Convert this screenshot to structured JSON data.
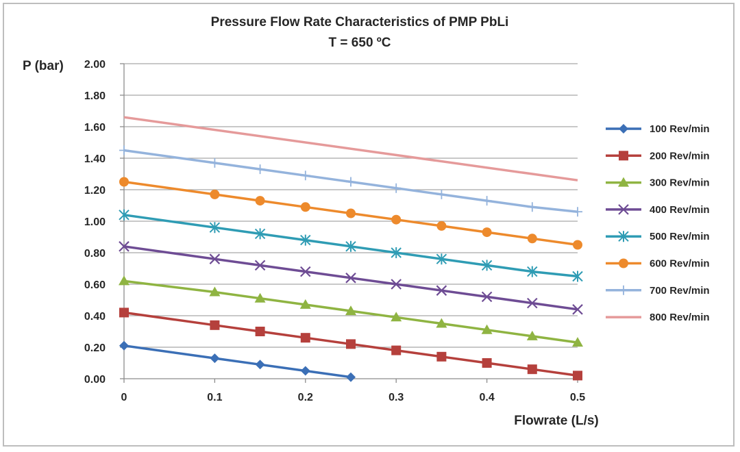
{
  "chart_data": {
    "type": "line",
    "title": "Pressure Flow Rate Characteristics of PMP PbLi",
    "subtitle": "T = 650 ºC",
    "xlabel": "Flowrate (L/s)",
    "ylabel": "P (bar)",
    "xlim": [
      0,
      0.5
    ],
    "ylim": [
      0,
      2.0
    ],
    "x_ticks": [
      "0",
      "0.1",
      "0.2",
      "0.3",
      "0.4",
      "0.5"
    ],
    "y_ticks": [
      "0.00",
      "0.20",
      "0.40",
      "0.60",
      "0.80",
      "1.00",
      "1.20",
      "1.40",
      "1.60",
      "1.80",
      "2.00"
    ],
    "grid": true,
    "legend_position": "right",
    "series": [
      {
        "name": "100 Rev/min",
        "color": "#3b6fb6",
        "marker": "diamond",
        "x": [
          0,
          0.1,
          0.15,
          0.2,
          0.25
        ],
        "y": [
          0.21,
          0.13,
          0.09,
          0.05,
          0.01
        ]
      },
      {
        "name": "200 Rev/min",
        "color": "#b5403c",
        "marker": "square",
        "x": [
          0,
          0.1,
          0.15,
          0.2,
          0.25,
          0.3,
          0.35,
          0.4,
          0.45,
          0.5
        ],
        "y": [
          0.42,
          0.34,
          0.3,
          0.26,
          0.22,
          0.18,
          0.14,
          0.1,
          0.06,
          0.02
        ]
      },
      {
        "name": "300 Rev/min",
        "color": "#8fb442",
        "marker": "triangle",
        "x": [
          0,
          0.1,
          0.15,
          0.2,
          0.25,
          0.3,
          0.35,
          0.4,
          0.45,
          0.5
        ],
        "y": [
          0.62,
          0.55,
          0.51,
          0.47,
          0.43,
          0.39,
          0.35,
          0.31,
          0.27,
          0.23
        ]
      },
      {
        "name": "400 Rev/min",
        "color": "#6e4c94",
        "marker": "x",
        "x": [
          0,
          0.1,
          0.15,
          0.2,
          0.25,
          0.3,
          0.35,
          0.4,
          0.45,
          0.5
        ],
        "y": [
          0.84,
          0.76,
          0.72,
          0.68,
          0.64,
          0.6,
          0.56,
          0.52,
          0.48,
          0.44
        ]
      },
      {
        "name": "500 Rev/min",
        "color": "#2f9cb4",
        "marker": "star",
        "x": [
          0,
          0.1,
          0.15,
          0.2,
          0.25,
          0.3,
          0.35,
          0.4,
          0.45,
          0.5
        ],
        "y": [
          1.04,
          0.96,
          0.92,
          0.88,
          0.84,
          0.8,
          0.76,
          0.72,
          0.68,
          0.65
        ]
      },
      {
        "name": "600 Rev/min",
        "color": "#ed8a2c",
        "marker": "circle",
        "x": [
          0,
          0.1,
          0.15,
          0.2,
          0.25,
          0.3,
          0.35,
          0.4,
          0.45,
          0.5
        ],
        "y": [
          1.25,
          1.17,
          1.13,
          1.09,
          1.05,
          1.01,
          0.97,
          0.93,
          0.89,
          0.85
        ]
      },
      {
        "name": "700 Rev/min",
        "color": "#94b3dc",
        "marker": "plus",
        "x": [
          0,
          0.1,
          0.15,
          0.2,
          0.25,
          0.3,
          0.35,
          0.4,
          0.45,
          0.5
        ],
        "y": [
          1.45,
          1.37,
          1.33,
          1.29,
          1.25,
          1.21,
          1.17,
          1.13,
          1.09,
          1.06
        ]
      },
      {
        "name": "800 Rev/min",
        "color": "#e59a9a",
        "marker": "none",
        "x": [
          0,
          0.5
        ],
        "y": [
          1.66,
          1.26
        ]
      }
    ]
  }
}
